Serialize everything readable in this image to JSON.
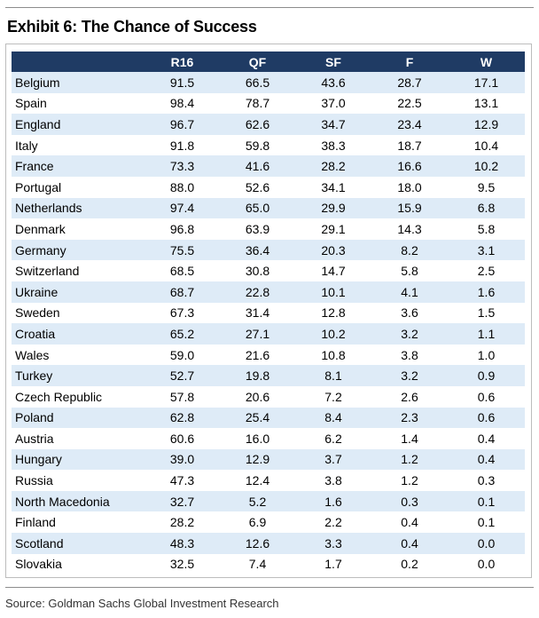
{
  "title": "Exhibit 6: The Chance of Success",
  "table": {
    "headers": [
      "",
      "R16",
      "QF",
      "SF",
      "F",
      "W"
    ],
    "rows": [
      [
        "Belgium",
        "91.5",
        "66.5",
        "43.6",
        "28.7",
        "17.1"
      ],
      [
        "Spain",
        "98.4",
        "78.7",
        "37.0",
        "22.5",
        "13.1"
      ],
      [
        "England",
        "96.7",
        "62.6",
        "34.7",
        "23.4",
        "12.9"
      ],
      [
        "Italy",
        "91.8",
        "59.8",
        "38.3",
        "18.7",
        "10.4"
      ],
      [
        "France",
        "73.3",
        "41.6",
        "28.2",
        "16.6",
        "10.2"
      ],
      [
        "Portugal",
        "88.0",
        "52.6",
        "34.1",
        "18.0",
        "9.5"
      ],
      [
        "Netherlands",
        "97.4",
        "65.0",
        "29.9",
        "15.9",
        "6.8"
      ],
      [
        "Denmark",
        "96.8",
        "63.9",
        "29.1",
        "14.3",
        "5.8"
      ],
      [
        "Germany",
        "75.5",
        "36.4",
        "20.3",
        "8.2",
        "3.1"
      ],
      [
        "Switzerland",
        "68.5",
        "30.8",
        "14.7",
        "5.8",
        "2.5"
      ],
      [
        "Ukraine",
        "68.7",
        "22.8",
        "10.1",
        "4.1",
        "1.6"
      ],
      [
        "Sweden",
        "67.3",
        "31.4",
        "12.8",
        "3.6",
        "1.5"
      ],
      [
        "Croatia",
        "65.2",
        "27.1",
        "10.2",
        "3.2",
        "1.1"
      ],
      [
        "Wales",
        "59.0",
        "21.6",
        "10.8",
        "3.8",
        "1.0"
      ],
      [
        "Turkey",
        "52.7",
        "19.8",
        "8.1",
        "3.2",
        "0.9"
      ],
      [
        "Czech Republic",
        "57.8",
        "20.6",
        "7.2",
        "2.6",
        "0.6"
      ],
      [
        "Poland",
        "62.8",
        "25.4",
        "8.4",
        "2.3",
        "0.6"
      ],
      [
        "Austria",
        "60.6",
        "16.0",
        "6.2",
        "1.4",
        "0.4"
      ],
      [
        "Hungary",
        "39.0",
        "12.9",
        "3.7",
        "1.2",
        "0.4"
      ],
      [
        "Russia",
        "47.3",
        "12.4",
        "3.8",
        "1.2",
        "0.3"
      ],
      [
        "North Macedonia",
        "32.7",
        "5.2",
        "1.6",
        "0.3",
        "0.1"
      ],
      [
        "Finland",
        "28.2",
        "6.9",
        "2.2",
        "0.4",
        "0.1"
      ],
      [
        "Scotland",
        "48.3",
        "12.6",
        "3.3",
        "0.4",
        "0.0"
      ],
      [
        "Slovakia",
        "32.5",
        "7.4",
        "1.7",
        "0.2",
        "0.0"
      ]
    ]
  },
  "source": "Source: Goldman Sachs Global Investment Research",
  "colors": {
    "header_bg": "#1f3b64",
    "stripe": "#deebf7"
  }
}
